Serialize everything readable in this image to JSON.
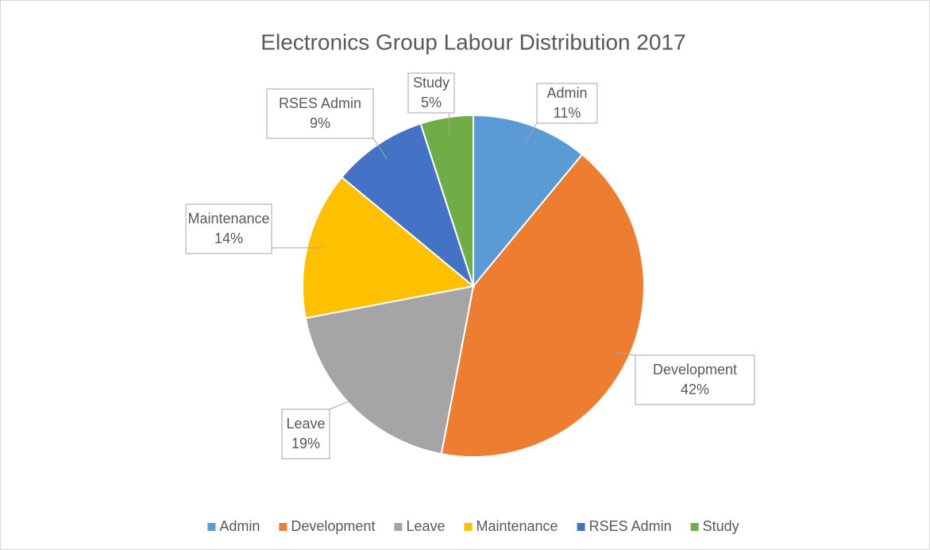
{
  "chart_data": {
    "type": "pie",
    "title": "Electronics Group Labour Distribution 2017",
    "categories": [
      "Admin",
      "Development",
      "Leave",
      "Maintenance",
      "RSES Admin",
      "Study"
    ],
    "values": [
      11,
      42,
      19,
      14,
      9,
      5
    ],
    "value_labels": [
      "11%",
      "42%",
      "19%",
      "14%",
      "9%",
      "5%"
    ],
    "colors": [
      "#5b9bd5",
      "#ed7d31",
      "#a5a5a5",
      "#ffc000",
      "#4472c4",
      "#70ad47"
    ],
    "legend": "bottom"
  }
}
